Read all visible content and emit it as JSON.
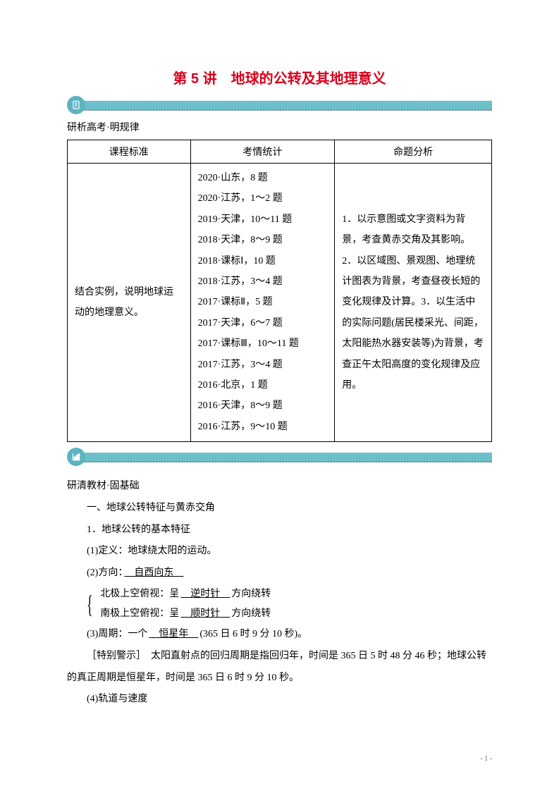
{
  "title": "第 5 讲　地球的公转及其地理意义",
  "band": {
    "bg_color": "#6cc0ca",
    "circle_color": "#5db4c0",
    "icon_color": "#ffffff"
  },
  "section1": {
    "subtitle": "研析高考·明规律",
    "table": {
      "headers": [
        "课程标准",
        "考情统计",
        "命题分析"
      ],
      "standard": "结合实例，说明地球运动的地理意义。",
      "stats": [
        "2020·山东，8 题",
        "2020·江苏，1～2 题",
        "2019·天津，10～11 题",
        "2018·天津，8～9 题",
        "2018·课标Ⅰ，10 题",
        "2018·江苏，3～4 题",
        "2017·课标Ⅱ，5 题",
        "2017·天津，6～7 题",
        "2017·课标Ⅲ，10～11 题",
        "2017·江苏，3～4 题",
        "2016·北京，1 题",
        "2016·天津，8～9 题",
        "2016·江苏，9～10 题"
      ],
      "analysis": [
        "1．以示意图或文字资料为背景，考查黄赤交角及其影响。",
        "2．以区域图、景观图、地理统计图表为背景，考查昼夜长短的变化规律及计算。",
        "3．以生活中的实际问题(居民楼采光、间距，太阳能热水器安装等)为背景，考查正午太阳高度的变化规律及应用。"
      ]
    }
  },
  "section2": {
    "subtitle": "研清教材·固基础",
    "lines": {
      "l1": "一、地球公转特征与黄赤交角",
      "l2": "1．地球公转的基本特征",
      "l3": "(1)定义：地球绕太阳的运动。",
      "l4_prefix": "(2)方向：",
      "l4_underline": "　自西向东　",
      "brace_a_prefix": "北极上空俯视：呈",
      "brace_a_underline": "　逆时针　",
      "brace_a_suffix": "方向绕转",
      "brace_b_prefix": "南极上空俯视：呈",
      "brace_b_underline": "　顺时针　",
      "brace_b_suffix": "方向绕转",
      "l5_prefix": "(3)周期：一个",
      "l5_underline": "　恒星年　",
      "l5_suffix": "(365 日 6 时 9 分 10 秒)。",
      "l6": "［特别警示］　太阳直射点的回归周期是指回归年，时间是 365 日 5 时 48 分 46 秒；地球公转的真正周期是恒星年，时间是 365 日 6 时 9 分 10 秒。",
      "l7": "(4)轨道与速度"
    }
  },
  "page_number": "- 1 -",
  "colors": {
    "title_color": "#d9001b",
    "text_color": "#000000",
    "border_color": "#000000"
  },
  "typography": {
    "title_fontsize": 20,
    "body_fontsize": 14,
    "line_height": 2.2
  }
}
